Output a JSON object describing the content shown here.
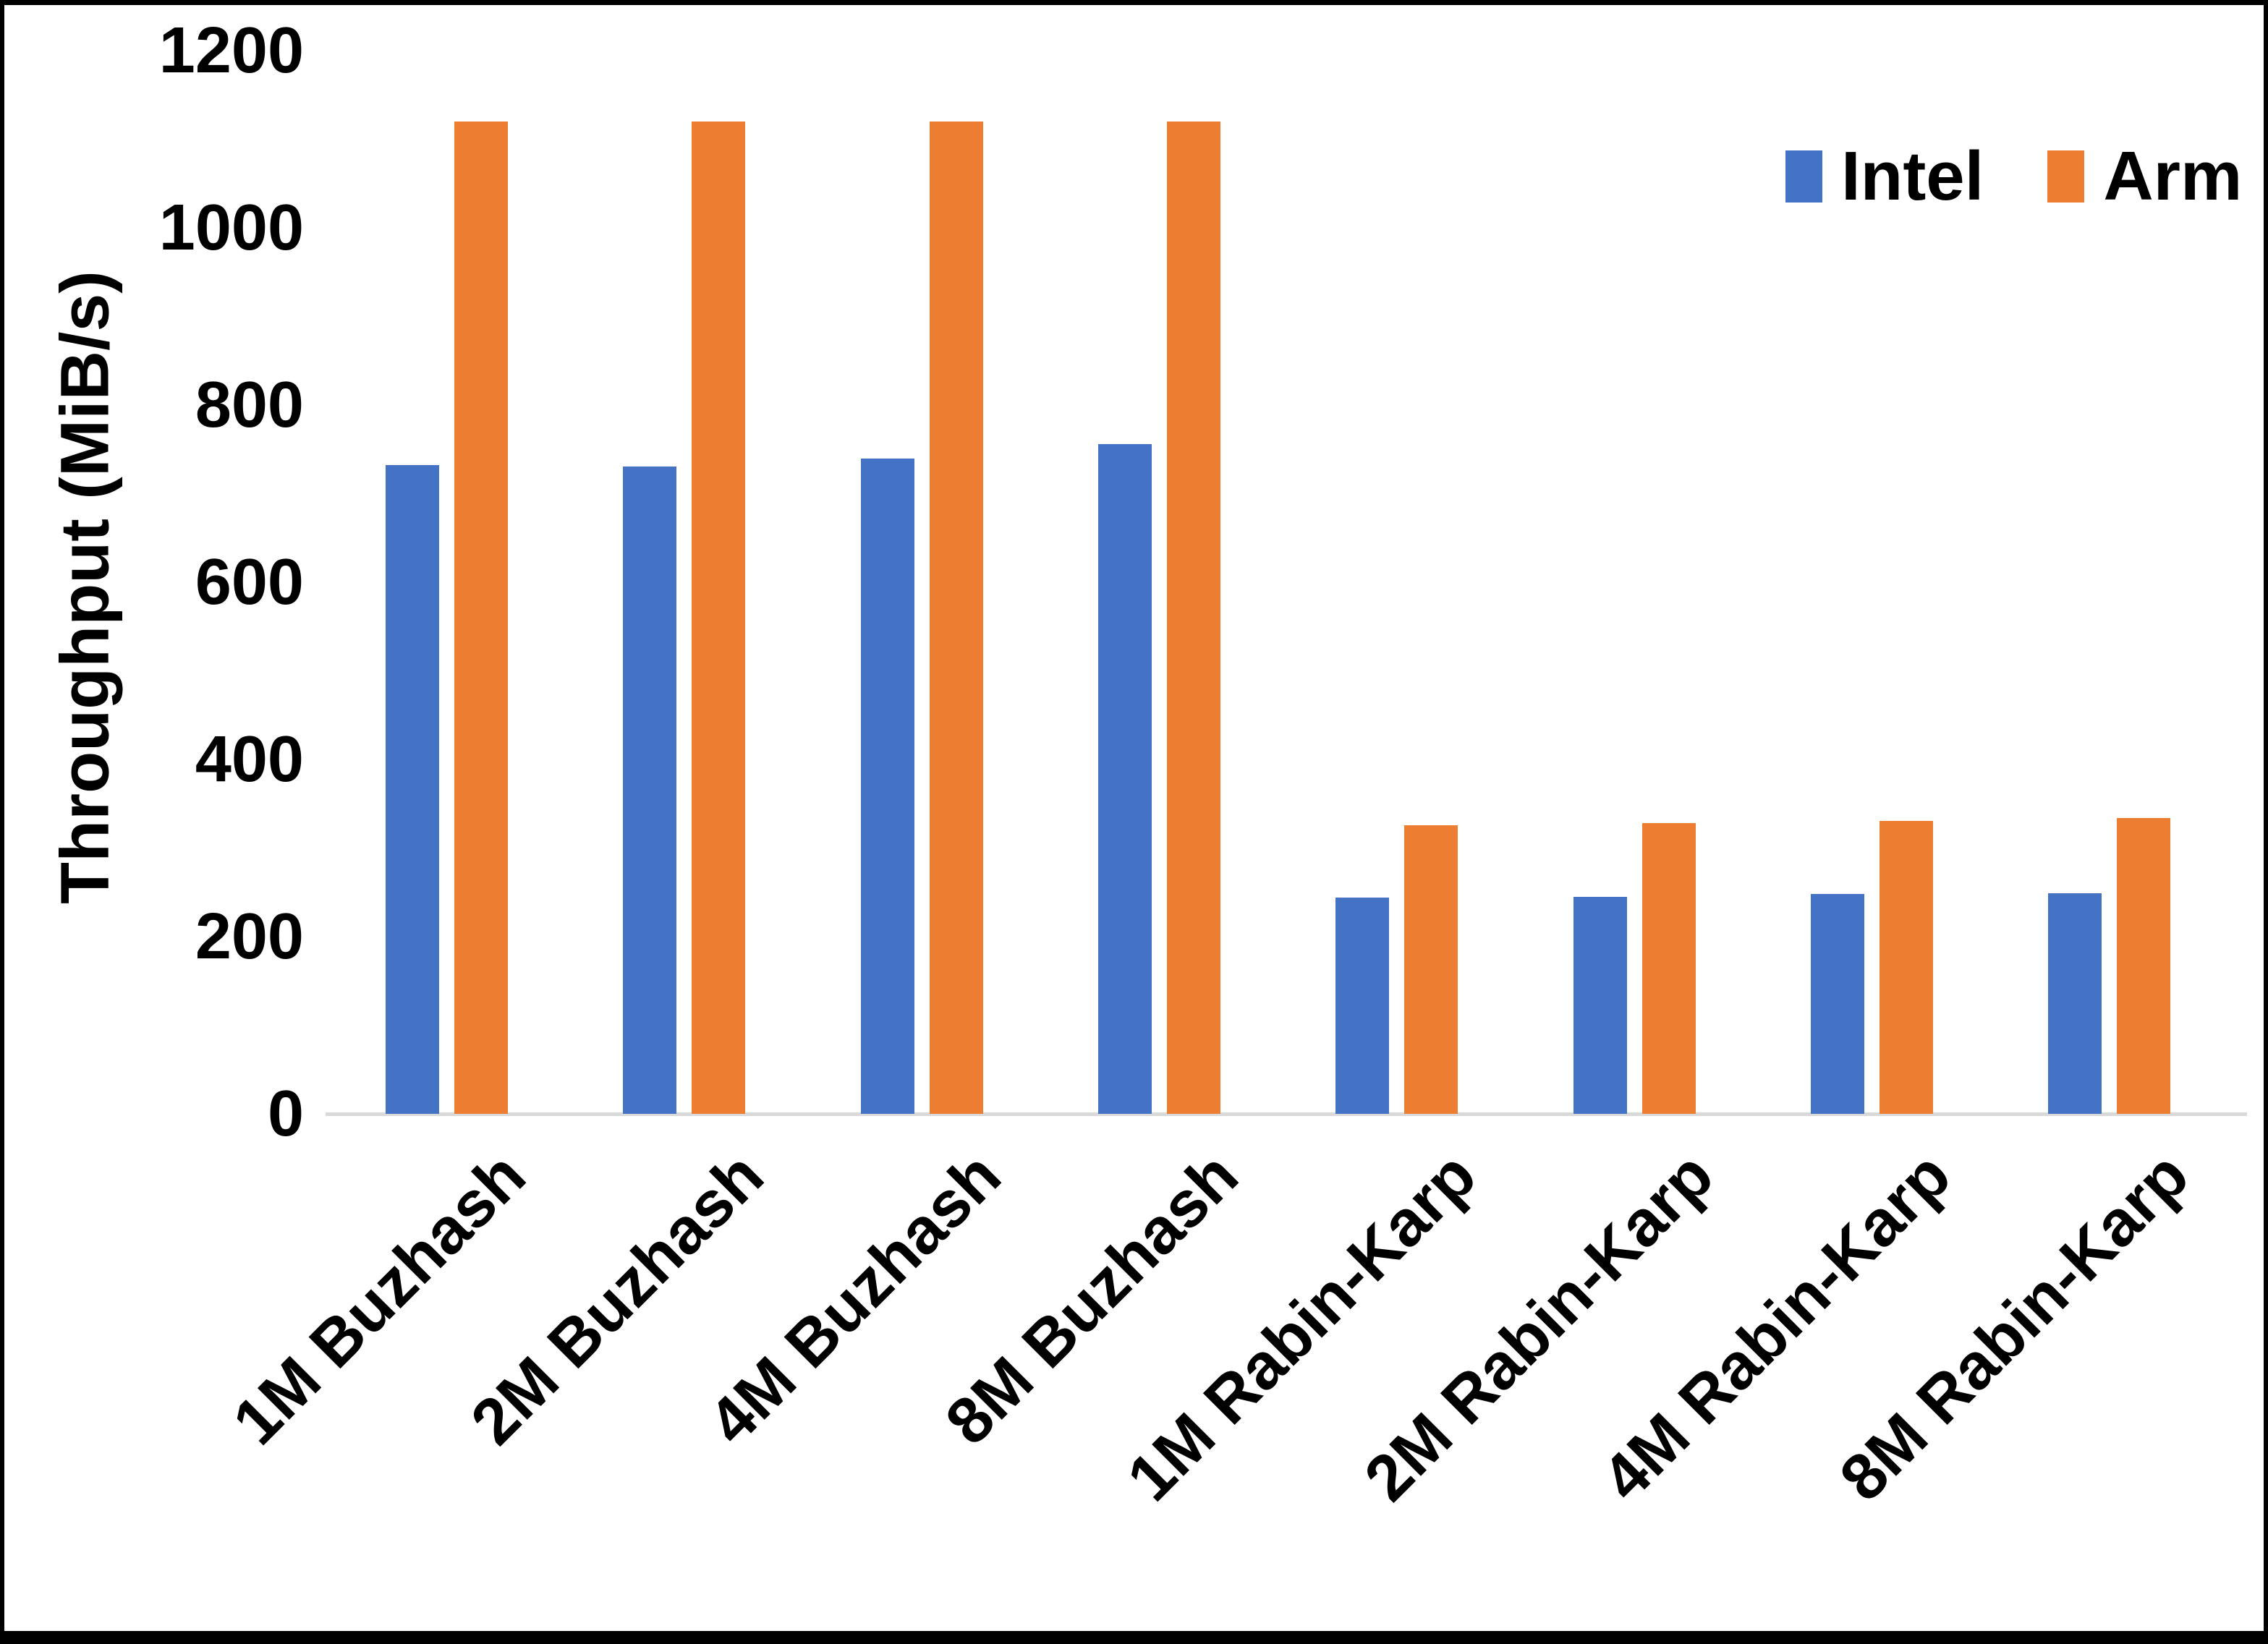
{
  "frame": {
    "background": "#ffffff",
    "border_color": "#000000"
  },
  "chart_data": {
    "type": "bar",
    "title": "",
    "xlabel": "",
    "ylabel": "Throughput (MiB/s)",
    "ylim": [
      0,
      1200
    ],
    "yticks": [
      0,
      200,
      400,
      600,
      800,
      1000,
      1200
    ],
    "grid": false,
    "legend_position": "top-right",
    "axis_line_color": "#d9d9d9",
    "categories": [
      "1M Buzhash",
      "2M Buzhash",
      "4M Buzhash",
      "8M Buzhash",
      "1M Rabin-Karp",
      "2M Rabin-Karp",
      "4M Rabin-Karp",
      "8M Rabin-Karp"
    ],
    "series": [
      {
        "name": "Intel",
        "color": "#4472C4",
        "values": [
          732,
          731,
          740,
          756,
          244,
          245,
          248,
          249
        ]
      },
      {
        "name": "Arm",
        "color": "#ED7D31",
        "values": [
          1120,
          1120,
          1120,
          1120,
          326,
          328,
          331,
          334
        ]
      }
    ]
  }
}
